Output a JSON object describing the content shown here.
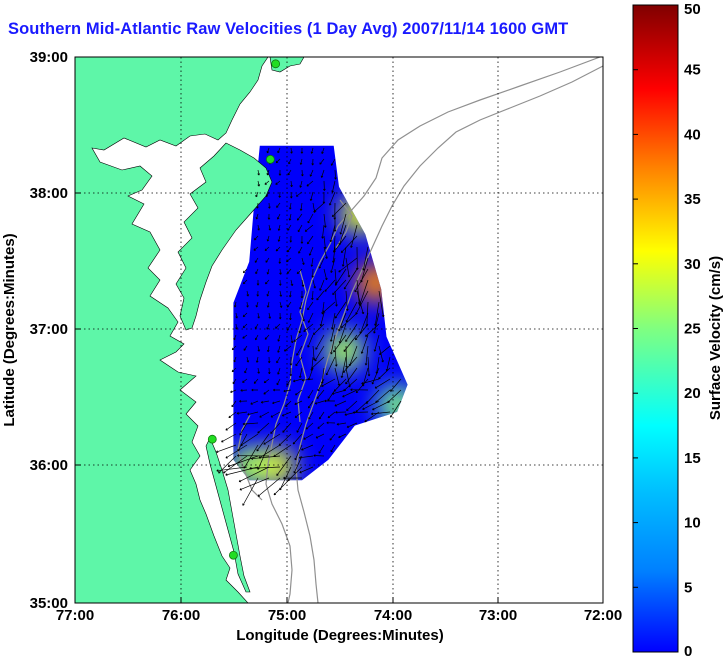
{
  "title": "Southern Mid-Atlantic Raw Velocities (1 Day Avg) 2007/11/14 1600 GMT",
  "xlabel": "Longitude (Degrees:Minutes)",
  "ylabel": "Latitude (Degrees:Minutes)",
  "colorbar_label": "Surface Velocity (cm/s)",
  "x_ticks": [
    "77:00",
    "76:00",
    "75:00",
    "74:00",
    "73:00",
    "72:00"
  ],
  "y_ticks": [
    "39:00",
    "38:00",
    "37:00",
    "36:00",
    "35:00"
  ],
  "colorbar_ticks": [
    "0",
    "5",
    "10",
    "15",
    "20",
    "25",
    "30",
    "35",
    "40",
    "45",
    "50"
  ],
  "colors": {
    "land": "#5ef6a8",
    "title": "#1a1aff",
    "bathymetry": "#909090",
    "station": "#22dd22",
    "vector": "#000000"
  },
  "chart_data": {
    "type": "heatmap",
    "title": "Southern Mid-Atlantic Raw Velocities (1 Day Avg) 2007/11/14 1600 GMT",
    "xlabel": "Longitude (Degrees:Minutes)",
    "ylabel": "Latitude (Degrees:Minutes)",
    "xlim": [
      -77,
      -72
    ],
    "ylim": [
      35,
      39
    ],
    "colorbar": {
      "label": "Surface Velocity (cm/s)",
      "range": [
        0,
        50
      ],
      "colormap": "jet"
    },
    "grid": true,
    "coverage_polygon_lonlat": [
      [
        -75.25,
        38.35
      ],
      [
        -74.55,
        38.35
      ],
      [
        -74.5,
        38.05
      ],
      [
        -74.25,
        37.7
      ],
      [
        -74.1,
        37.3
      ],
      [
        -74.05,
        36.95
      ],
      [
        -73.85,
        36.6
      ],
      [
        -73.95,
        36.4
      ],
      [
        -74.35,
        36.3
      ],
      [
        -74.6,
        36.05
      ],
      [
        -74.85,
        35.9
      ],
      [
        -75.35,
        35.9
      ],
      [
        -75.5,
        36.05
      ],
      [
        -75.5,
        37.2
      ],
      [
        -75.35,
        37.5
      ],
      [
        -75.3,
        37.95
      ]
    ],
    "hotspots": [
      {
        "lon": -74.15,
        "lat": 37.35,
        "speed": 37
      },
      {
        "lon": -74.3,
        "lat": 37.85,
        "speed": 30
      },
      {
        "lon": -74.45,
        "lat": 36.85,
        "speed": 27
      },
      {
        "lon": -75.1,
        "lat": 36.0,
        "speed": 30
      },
      {
        "lon": -75.35,
        "lat": 36.0,
        "speed": 27
      },
      {
        "lon": -73.95,
        "lat": 36.45,
        "speed": 25
      }
    ],
    "base_speed": 6,
    "stations_lonlat": [
      [
        -75.1,
        38.95
      ],
      [
        -75.15,
        38.25
      ],
      [
        -75.7,
        36.2
      ],
      [
        -75.5,
        35.35
      ]
    ]
  }
}
